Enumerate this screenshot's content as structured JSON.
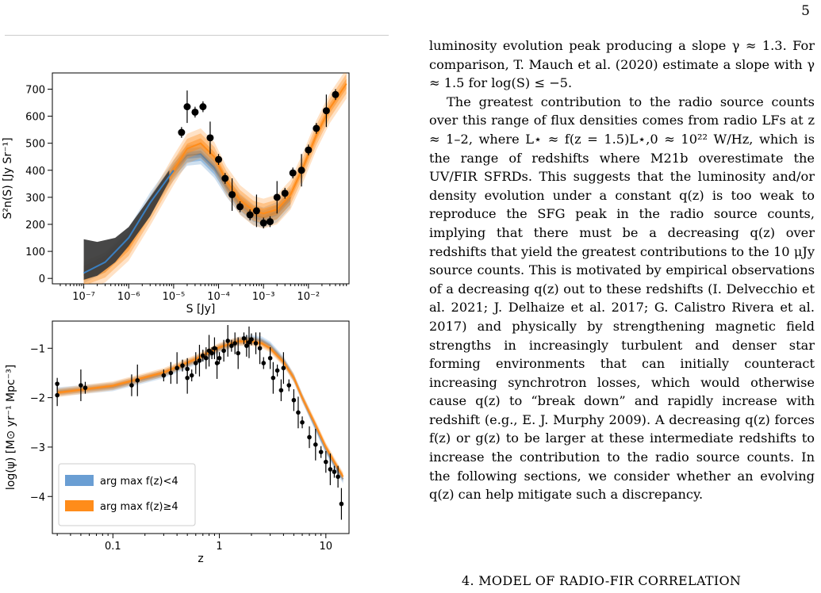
{
  "page_number": "5",
  "figure": {
    "chart_data": [
      {
        "type": "line",
        "xlabel": "S [Jy]",
        "ylabel": "S²n(S) [Jy Sr⁻¹]",
        "xscale": "log",
        "xlim": [
          2e-08,
          0.08
        ],
        "ylim": [
          -20,
          760
        ],
        "xticks": [
          "10⁻⁷",
          "10⁻⁶",
          "10⁻⁵",
          "10⁻⁴",
          "10⁻³",
          "10⁻²"
        ],
        "yticks": [
          0,
          100,
          200,
          300,
          400,
          500,
          600,
          700
        ],
        "series": [
          {
            "color": "#3a7fc1",
            "x": [
              1e-07,
              3e-07,
              1e-06,
              3e-06,
              1e-05,
              2e-05,
              4e-05,
              8e-05,
              0.00015,
              0.0003,
              0.0006,
              0.001,
              0.002,
              0.004
            ],
            "y": [
              20,
              60,
              150,
              280,
              400,
              455,
              460,
              410,
              340,
              275,
              235,
              225,
              245,
              300
            ]
          },
          {
            "color": "#ff8c1a",
            "x": [
              1e-07,
              3e-07,
              1e-06,
              3e-06,
              1e-05,
              2e-05,
              4e-05,
              8e-05,
              0.00015,
              0.0003,
              0.0006,
              0.001,
              0.002,
              0.004,
              0.008,
              0.015,
              0.03,
              0.07
            ],
            "y": [
              10,
              40,
              120,
              250,
              400,
              480,
              500,
              450,
              360,
              290,
              250,
              240,
              255,
              310,
              420,
              530,
              630,
              720
            ]
          }
        ],
        "data_points": {
          "color": "#000000",
          "x": [
            1.5e-05,
            2e-05,
            3e-05,
            4.5e-05,
            6.5e-05,
            0.0001,
            0.00014,
            0.0002,
            0.0003,
            0.0005,
            0.0007,
            0.001,
            0.0014,
            0.002,
            0.003,
            0.0045,
            0.007,
            0.01,
            0.015,
            0.025,
            0.04
          ],
          "y": [
            540,
            635,
            615,
            635,
            520,
            440,
            370,
            310,
            265,
            235,
            250,
            205,
            210,
            300,
            315,
            390,
            400,
            475,
            555,
            620,
            680
          ]
        }
      },
      {
        "type": "line",
        "xlabel": "z",
        "ylabel": "log(ψ) [M⊙ yr⁻¹ Mpc⁻³]",
        "xscale": "log",
        "xlim": [
          0.027,
          16.5
        ],
        "ylim": [
          -4.75,
          -0.45
        ],
        "xticks": [
          "0.1",
          "1",
          "10"
        ],
        "yticks": [
          "−1",
          "−2",
          "−3",
          "−4"
        ],
        "legend": {
          "position": "lower-left",
          "entries": [
            {
              "label": "arg max f(z)<4",
              "color": "#6a9ed3"
            },
            {
              "label": "arg max f(z)≥4",
              "color": "#ff8c1a"
            }
          ]
        },
        "series": [
          {
            "name": "arg max f(z)<4",
            "color": "#6a9ed3",
            "x": [
              0.03,
              0.1,
              0.3,
              0.6,
              1,
              1.5,
              2,
              2.5,
              3,
              4,
              5,
              6,
              8,
              10,
              12,
              14.5
            ],
            "y": [
              -1.88,
              -1.78,
              -1.52,
              -1.25,
              -1.0,
              -0.86,
              -0.82,
              -0.85,
              -0.95,
              -1.25,
              -1.6,
              -2.0,
              -2.6,
              -3.05,
              -3.35,
              -3.65
            ]
          },
          {
            "name": "arg max f(z)≥4",
            "color": "#ff8c1a",
            "x": [
              0.03,
              0.1,
              0.3,
              0.6,
              1,
              1.5,
              2,
              2.5,
              3,
              4,
              5,
              6,
              8,
              10,
              12,
              14.5
            ],
            "y": [
              -1.9,
              -1.76,
              -1.49,
              -1.22,
              -0.98,
              -0.86,
              -0.86,
              -0.9,
              -1.0,
              -1.28,
              -1.6,
              -2.0,
              -2.55,
              -3.0,
              -3.3,
              -3.6
            ]
          }
        ],
        "data_points": {
          "color": "#000000",
          "x": [
            0.03,
            0.03,
            0.05,
            0.055,
            0.15,
            0.17,
            0.3,
            0.35,
            0.4,
            0.45,
            0.5,
            0.5,
            0.55,
            0.6,
            0.65,
            0.7,
            0.75,
            0.8,
            0.85,
            0.9,
            0.95,
            1.0,
            1.1,
            1.2,
            1.3,
            1.4,
            1.5,
            1.7,
            1.8,
            1.9,
            2.0,
            2.2,
            2.4,
            2.6,
            3.0,
            3.2,
            3.5,
            3.8,
            4.0,
            4.5,
            5.0,
            5.5,
            6.0,
            7.0,
            8.0,
            9.0,
            10.0,
            11.0,
            12.0,
            13.0,
            14.0
          ],
          "y": [
            -1.72,
            -1.95,
            -1.75,
            -1.8,
            -1.75,
            -1.65,
            -1.55,
            -1.5,
            -1.4,
            -1.35,
            -1.42,
            -1.6,
            -1.55,
            -1.3,
            -1.25,
            -1.15,
            -1.2,
            -1.05,
            -1.1,
            -1.0,
            -1.3,
            -1.2,
            -1.05,
            -0.85,
            -0.95,
            -0.9,
            -1.1,
            -0.8,
            -0.95,
            -0.88,
            -0.82,
            -0.9,
            -1.0,
            -1.3,
            -1.2,
            -1.6,
            -1.45,
            -1.85,
            -1.4,
            -1.75,
            -2.05,
            -2.3,
            -2.5,
            -2.8,
            -2.95,
            -3.1,
            -3.3,
            -3.45,
            -3.5,
            -3.6,
            -4.15
          ]
        }
      }
    ]
  },
  "text": {
    "p1": "luminosity evolution peak producing a slope γ ≈ 1.3. For comparison, T. Mauch et al. (2020) estimate a slope with γ ≈ 1.5 for log(S) ≤ −5.",
    "p2": "The greatest contribution to the radio source counts over this range of flux densities comes from radio LFs at z ≈ 1–2, where L⋆ ≈ f(z = 1.5)L⋆,0 ≈ 10²² W/Hz, which is the range of redshifts where M21b overestimate the UV/FIR SFRDs. This suggests that the luminosity and/or density evolution under a constant q(z) is too weak to reproduce the SFG peak in the radio source counts, implying that there must be a decreasing q(z) over redshifts that yield the greatest contributions to the 10 μJy source counts. This is motivated by empirical observations of a decreasing q(z) out to these redshifts (I. Delvecchio et al. 2021; J. Delhaize et al. 2017; G. Calistro Rivera et al. 2017) and physically by strengthening magnetic field strengths in increasingly turbulent and denser star forming environments that can initially counteract increasing synchrotron losses, which would otherwise cause q(z) to “break down” and rapidly increase with redshift (e.g., E. J. Murphy 2009). A decreasing q(z) forces f(z) or g(z) to be larger at these intermediate redshifts to increase the contribution to the radio source counts. In the following sections, we consider whether an evolving q(z) can help mitigate such a discrepancy.",
    "section_heading": "4. MODEL OF RADIO-FIR CORRELATION"
  }
}
